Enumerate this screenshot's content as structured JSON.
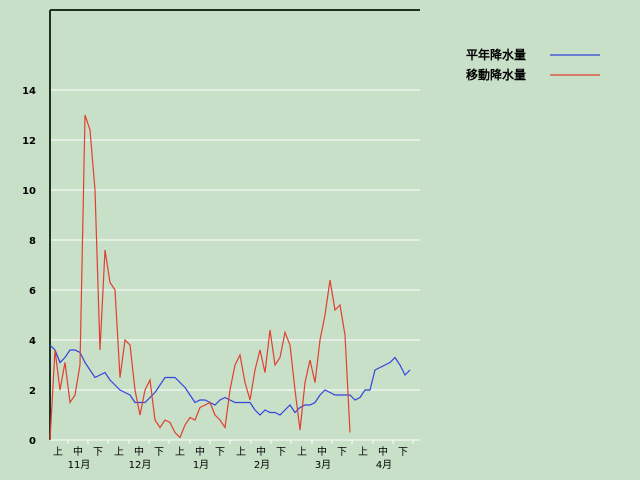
{
  "chart_data": {
    "type": "line",
    "ylim": [
      0,
      17.2
    ],
    "yticks": [
      0,
      2,
      4,
      6,
      8,
      10,
      12,
      14
    ],
    "grid": true,
    "legend": "top-right",
    "decades": [
      "上",
      "中",
      "下",
      "上",
      "中",
      "下",
      "上",
      "中",
      "下",
      "上",
      "中",
      "下",
      "上",
      "中",
      "下",
      "上",
      "中",
      "下"
    ],
    "months": [
      "11月",
      "12月",
      "1月",
      "2月",
      "3月",
      "4月"
    ],
    "series": [
      {
        "name": "平年降水量",
        "color": "#3344dd",
        "values": [
          3.8,
          3.6,
          3.1,
          3.3,
          3.6,
          3.6,
          3.5,
          3.1,
          2.8,
          2.5,
          2.6,
          2.7,
          2.4,
          2.2,
          2.0,
          1.9,
          1.8,
          1.5,
          1.5,
          1.5,
          1.7,
          1.9,
          2.2,
          2.5,
          2.5,
          2.5,
          2.3,
          2.1,
          1.8,
          1.5,
          1.6,
          1.6,
          1.5,
          1.4,
          1.6,
          1.7,
          1.6,
          1.5,
          1.5,
          1.5,
          1.5,
          1.2,
          1.0,
          1.2,
          1.1,
          1.1,
          1.0,
          1.2,
          1.4,
          1.1,
          1.3,
          1.4,
          1.4,
          1.5,
          1.8,
          2.0,
          1.9,
          1.8,
          1.8,
          1.8,
          1.8,
          1.6,
          1.7,
          2.0,
          2.0,
          2.8,
          2.9,
          3.0,
          3.1,
          3.3,
          3.0,
          2.6,
          2.8
        ]
      },
      {
        "name": "移動降水量",
        "color": "#e04030",
        "values": [
          0,
          3.6,
          2.0,
          3.1,
          1.5,
          1.8,
          3.0,
          13.0,
          12.4,
          10.0,
          3.6,
          7.6,
          6.3,
          6.0,
          2.5,
          4.0,
          3.8,
          2.0,
          1.0,
          2.0,
          2.4,
          0.8,
          0.5,
          0.8,
          0.7,
          0.3,
          0.1,
          0.6,
          0.9,
          0.8,
          1.3,
          1.4,
          1.5,
          1.0,
          0.8,
          0.5,
          2.0,
          3.0,
          3.4,
          2.3,
          1.6,
          2.8,
          3.6,
          2.7,
          4.4,
          3.0,
          3.3,
          4.3,
          3.8,
          2.0,
          0.4,
          2.3,
          3.2,
          2.3,
          4.0,
          5.0,
          6.4,
          5.2,
          5.4,
          4.2,
          0.3,
          null,
          null,
          null,
          null,
          null,
          null,
          null,
          null,
          null,
          null,
          null,
          null
        ]
      }
    ]
  }
}
